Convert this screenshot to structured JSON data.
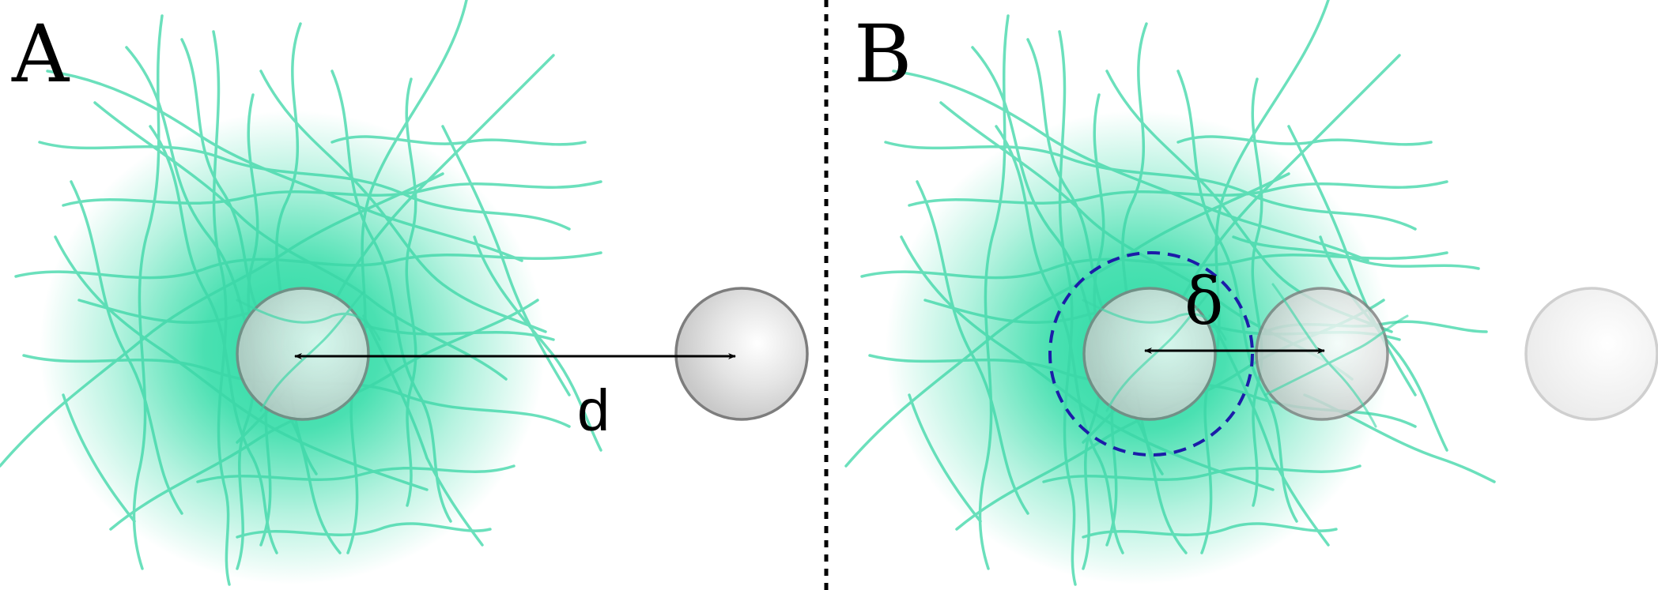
{
  "panels": [
    {
      "label": "A",
      "distance_label": "d"
    },
    {
      "label": "B",
      "distance_label": "δ"
    }
  ],
  "colors": {
    "fiber": "#3ad6a6",
    "cloud": "#1fd99f",
    "particle_fill": "#e4e4e4",
    "particle_stroke": "#7d7d7d",
    "ghost_particle_stroke": "#cfcfcf",
    "cutoff_circle": "#1c1ca8",
    "divider": "#000000",
    "arrow": "#000000"
  },
  "icons": {
    "particle": "sphere",
    "fibers": "polymer-network",
    "cutoff": "dashed-circle"
  }
}
